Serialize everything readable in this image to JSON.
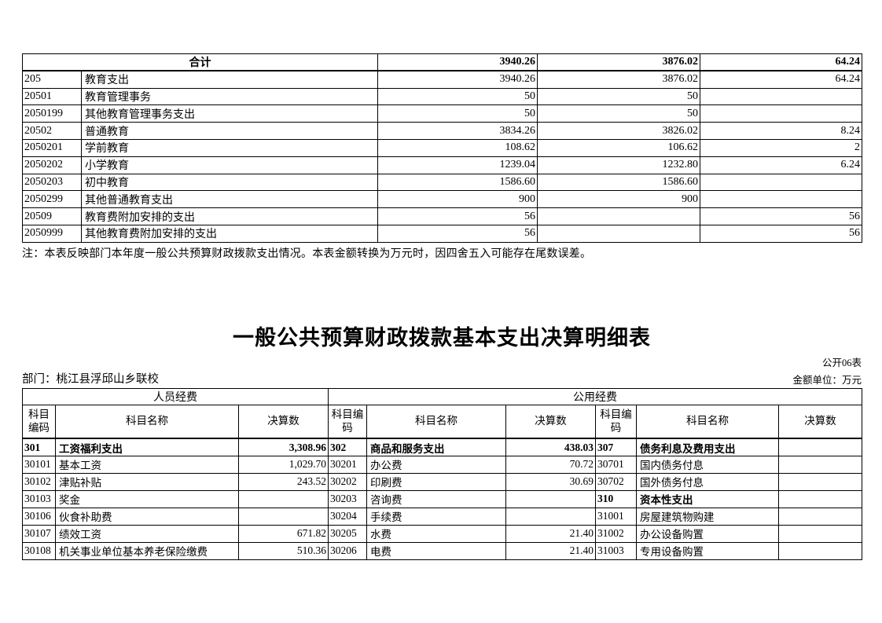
{
  "table1": {
    "total_row": {
      "label": "合计",
      "values": [
        "3940.26",
        "3876.02",
        "64.24"
      ]
    },
    "rows": [
      {
        "code": "205",
        "name": "教育支出",
        "values": [
          "3940.26",
          "3876.02",
          "64.24"
        ]
      },
      {
        "code": "20501",
        "name": "教育管理事务",
        "values": [
          "50",
          "50",
          ""
        ]
      },
      {
        "code": "2050199",
        "name": "其他教育管理事务支出",
        "values": [
          "50",
          "50",
          ""
        ]
      },
      {
        "code": "20502",
        "name": "普通教育",
        "values": [
          "3834.26",
          "3826.02",
          "8.24"
        ]
      },
      {
        "code": "2050201",
        "name": "学前教育",
        "values": [
          "108.62",
          "106.62",
          "2"
        ]
      },
      {
        "code": "2050202",
        "name": "小学教育",
        "values": [
          "1239.04",
          "1232.80",
          "6.24"
        ]
      },
      {
        "code": "2050203",
        "name": "初中教育",
        "values": [
          "1586.60",
          "1586.60",
          ""
        ]
      },
      {
        "code": "2050299",
        "name": "其他普通教育支出",
        "values": [
          "900",
          "900",
          ""
        ]
      },
      {
        "code": "20509",
        "name": "教育费附加安排的支出",
        "values": [
          "56",
          "",
          "56"
        ]
      },
      {
        "code": "2050999",
        "name": "其他教育费附加安排的支出",
        "values": [
          "56",
          "",
          "56"
        ]
      }
    ],
    "note": "注：本表反映部门本年度一般公共预算财政拨款支出情况。本表金额转换为万元时，因四舍五入可能存在尾数误差。"
  },
  "detail": {
    "title": "一般公共预算财政拨款基本支出决算明细表",
    "sheet_label": "公开06表",
    "department_label": "部门：桃江县浮邱山乡联校",
    "unit_label": "金额单位：万元",
    "group_headers": [
      "人员经费",
      "公用经费"
    ],
    "column_headers": [
      "科目编码",
      "科目名称",
      "决算数"
    ],
    "rows": [
      [
        {
          "code": "301",
          "name": "工资福利支出",
          "value": "3,308.96",
          "bold": true
        },
        {
          "code": "302",
          "name": "商品和服务支出",
          "value": "438.03",
          "bold": true
        },
        {
          "code": "307",
          "name": "债务利息及费用支出",
          "value": "",
          "bold": true
        }
      ],
      [
        {
          "code": "30101",
          "name": "基本工资",
          "value": "1,029.70"
        },
        {
          "code": "30201",
          "name": "办公费",
          "value": "70.72"
        },
        {
          "code": "30701",
          "name": "国内债务付息",
          "value": ""
        }
      ],
      [
        {
          "code": "30102",
          "name": "津贴补贴",
          "value": "243.52"
        },
        {
          "code": "30202",
          "name": "印刷费",
          "value": "30.69"
        },
        {
          "code": "30702",
          "name": "国外债务付息",
          "value": ""
        }
      ],
      [
        {
          "code": "30103",
          "name": "奖金",
          "value": ""
        },
        {
          "code": "30203",
          "name": "咨询费",
          "value": ""
        },
        {
          "code": "310",
          "name": "资本性支出",
          "value": "",
          "bold": true
        }
      ],
      [
        {
          "code": "30106",
          "name": "伙食补助费",
          "value": ""
        },
        {
          "code": "30204",
          "name": "手续费",
          "value": ""
        },
        {
          "code": "31001",
          "name": "房屋建筑物购建",
          "value": ""
        }
      ],
      [
        {
          "code": "30107",
          "name": "绩效工资",
          "value": "671.82"
        },
        {
          "code": "30205",
          "name": "水费",
          "value": "21.40"
        },
        {
          "code": "31002",
          "name": "办公设备购置",
          "value": ""
        }
      ],
      [
        {
          "code": "30108",
          "name": "机关事业单位基本养老保险缴费",
          "value": "510.36"
        },
        {
          "code": "30206",
          "name": "电费",
          "value": "21.40"
        },
        {
          "code": "31003",
          "name": "专用设备购置",
          "value": ""
        }
      ]
    ]
  }
}
